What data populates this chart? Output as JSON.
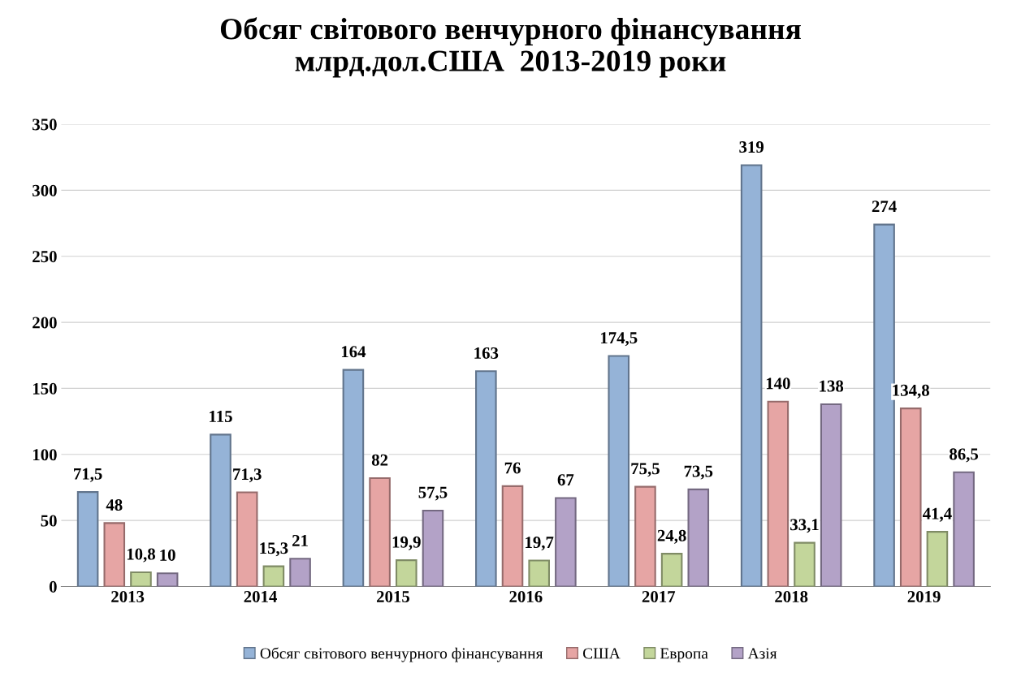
{
  "chart_data": {
    "type": "bar",
    "title": "Обсяг світового венчурного фінансування\nмлрд.дол.США  2013-2019 роки",
    "categories": [
      "2013",
      "2014",
      "2015",
      "2016",
      "2017",
      "2018",
      "2019"
    ],
    "series": [
      {
        "name": "Обсяг світового венчурного фінансування",
        "color": "#95b3d7",
        "values": [
          71.5,
          115,
          164,
          163,
          174.5,
          319,
          274
        ],
        "value_labels": [
          "71,5",
          "115",
          "164",
          "163",
          "174,5",
          "319",
          "274"
        ]
      },
      {
        "name": "США",
        "color": "#e6a5a4",
        "values": [
          48,
          71.3,
          82,
          76,
          75.5,
          140,
          134.8
        ],
        "value_labels": [
          "48",
          "71,3",
          "82",
          "76",
          "75,5",
          "140",
          "134,8"
        ]
      },
      {
        "name": "Европа",
        "color": "#c3d69b",
        "values": [
          10.8,
          15.3,
          19.9,
          19.7,
          24.8,
          33.1,
          41.4
        ],
        "value_labels": [
          "10,8",
          "15,3",
          "19,9",
          "19,7",
          "24,8",
          "33,1",
          "41,4"
        ]
      },
      {
        "name": "Азія",
        "color": "#b3a2c7",
        "values": [
          10,
          21,
          57.5,
          67,
          73.5,
          138,
          86.5
        ],
        "value_labels": [
          "10",
          "21",
          "57,5",
          "67",
          "73,5",
          "138",
          "86,5"
        ]
      }
    ],
    "ylim": [
      0,
      350
    ],
    "yticks": [
      0,
      50,
      100,
      150,
      200,
      250,
      300,
      350
    ],
    "grid": "y",
    "legend": "bottom"
  }
}
